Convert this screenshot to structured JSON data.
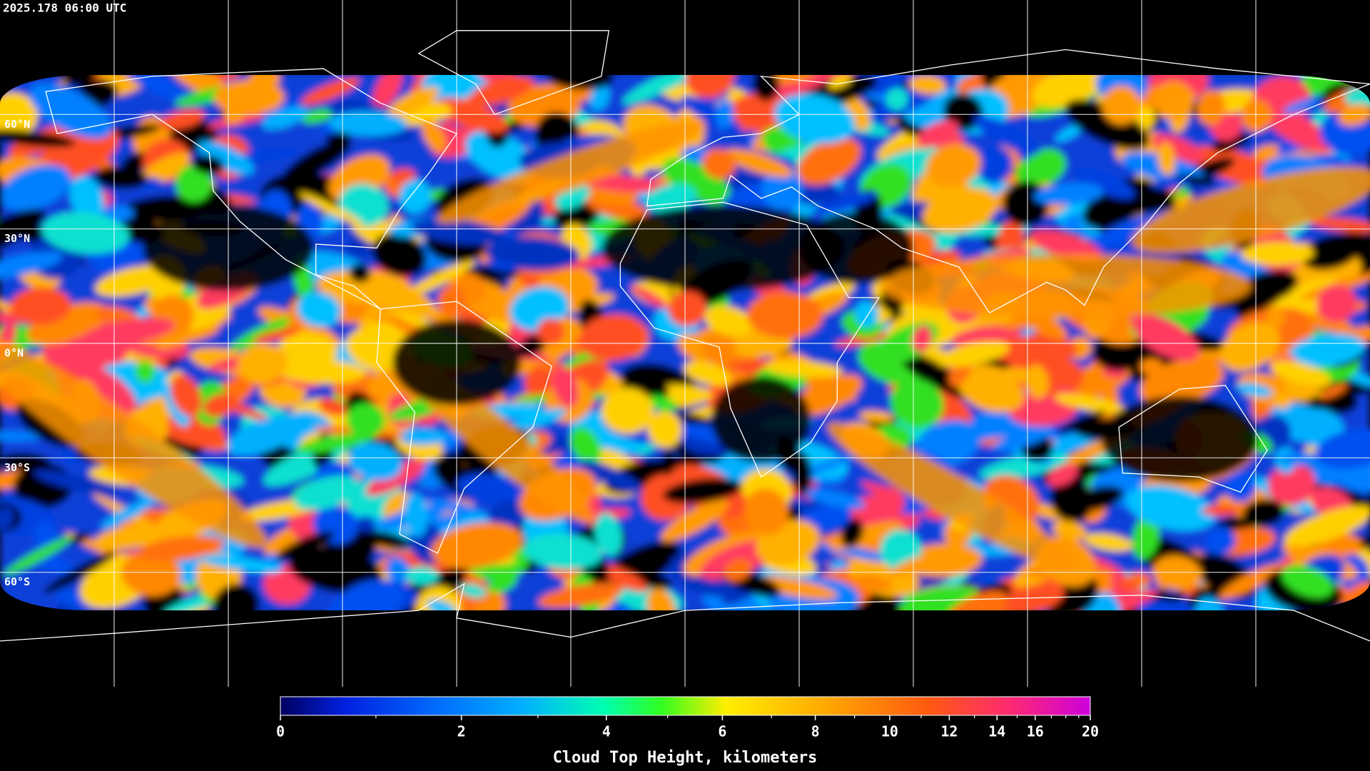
{
  "map": {
    "timestamp": "2025.178 06:00 UTC",
    "lat_labels": [
      {
        "value": 60,
        "label": "60°N"
      },
      {
        "value": 30,
        "label": "30°N"
      },
      {
        "value": 0,
        "label": "0°N"
      },
      {
        "value": -30,
        "label": "30°S"
      },
      {
        "value": -60,
        "label": "60°S"
      }
    ],
    "lon_lines": [
      -150,
      -120,
      -90,
      -60,
      -30,
      0,
      30,
      60,
      90,
      120,
      150
    ]
  },
  "colorbar": {
    "title": "Cloud Top Height, kilometers",
    "lim": [
      0,
      20
    ],
    "ticks": [
      0,
      2,
      4,
      6,
      8,
      10,
      12,
      14,
      16,
      20
    ],
    "minor_ticks": [
      1,
      3,
      5,
      7,
      9,
      11,
      13,
      15,
      17,
      18,
      19
    ]
  }
}
